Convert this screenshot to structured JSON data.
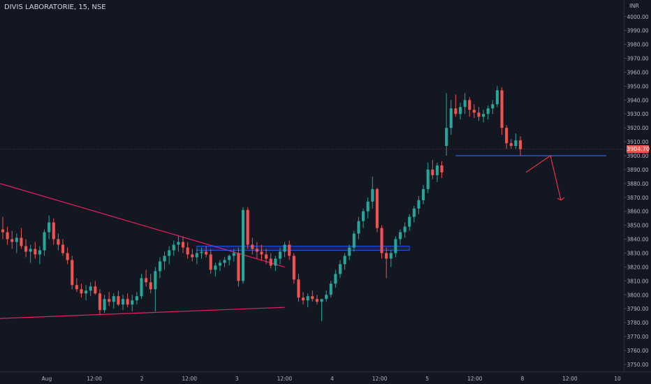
{
  "header": {
    "title": "DIVIS LABORATORIE, 15, NSE",
    "currency": "INR"
  },
  "last_price": {
    "label": "3904.70",
    "value": 3904.7
  },
  "colors": {
    "background": "#131722",
    "up": "#26a69a",
    "down": "#ef5350",
    "trendline": "#e91e63",
    "zone": "#2962ff",
    "arrow": "#f23645"
  },
  "chart_data": {
    "type": "candlestick",
    "title": "DIVIS LABORATORIE, 15, NSE",
    "y_unit": "INR",
    "ylim": [
      3745,
      4005
    ],
    "y_ticks": [
      "3750.00",
      "3760.00",
      "3770.00",
      "3780.00",
      "3790.00",
      "3800.00",
      "3810.00",
      "3820.00",
      "3830.00",
      "3840.00",
      "3850.00",
      "3860.00",
      "3870.00",
      "3880.00",
      "3890.00",
      "3900.00",
      "3910.00",
      "3920.00",
      "3930.00",
      "3940.00",
      "3950.00",
      "3960.00",
      "3970.00",
      "3980.00",
      "3990.00",
      "4000.00"
    ],
    "x_ticks": [
      "Aug",
      "12:00",
      "2",
      "12:00",
      "3",
      "12:00",
      "4",
      "12:00",
      "5",
      "12:00",
      "8",
      "12:00",
      "10"
    ],
    "candles": [
      [
        3847,
        3856,
        3840,
        3845
      ],
      [
        3845,
        3849,
        3836,
        3840
      ],
      [
        3840,
        3846,
        3833,
        3838
      ],
      [
        3838,
        3844,
        3830,
        3841
      ],
      [
        3841,
        3848,
        3833,
        3835
      ],
      [
        3835,
        3840,
        3827,
        3831
      ],
      [
        3831,
        3836,
        3823,
        3833
      ],
      [
        3833,
        3838,
        3826,
        3829
      ],
      [
        3829,
        3835,
        3822,
        3832
      ],
      [
        3832,
        3847,
        3828,
        3845
      ],
      [
        3845,
        3857,
        3840,
        3852
      ],
      [
        3852,
        3855,
        3836,
        3840
      ],
      [
        3840,
        3844,
        3832,
        3836
      ],
      [
        3836,
        3840,
        3828,
        3830
      ],
      [
        3830,
        3834,
        3822,
        3825
      ],
      [
        3825,
        3828,
        3804,
        3807
      ],
      [
        3807,
        3812,
        3802,
        3804
      ],
      [
        3804,
        3808,
        3798,
        3801
      ],
      [
        3801,
        3807,
        3796,
        3803
      ],
      [
        3803,
        3809,
        3799,
        3806
      ],
      [
        3806,
        3810,
        3800,
        3801
      ],
      [
        3801,
        3804,
        3786,
        3789
      ],
      [
        3789,
        3800,
        3787,
        3797
      ],
      [
        3797,
        3802,
        3792,
        3795
      ],
      [
        3795,
        3801,
        3790,
        3799
      ],
      [
        3799,
        3803,
        3792,
        3793
      ],
      [
        3793,
        3800,
        3789,
        3797
      ],
      [
        3797,
        3801,
        3791,
        3793
      ],
      [
        3793,
        3800,
        3788,
        3796
      ],
      [
        3796,
        3802,
        3793,
        3799
      ],
      [
        3799,
        3815,
        3797,
        3812
      ],
      [
        3812,
        3818,
        3806,
        3809
      ],
      [
        3809,
        3815,
        3801,
        3804
      ],
      [
        3804,
        3820,
        3788,
        3817
      ],
      [
        3817,
        3827,
        3812,
        3824
      ],
      [
        3824,
        3831,
        3818,
        3828
      ],
      [
        3828,
        3835,
        3822,
        3832
      ],
      [
        3832,
        3839,
        3828,
        3836
      ],
      [
        3836,
        3842,
        3831,
        3838
      ],
      [
        3838,
        3842,
        3830,
        3834
      ],
      [
        3834,
        3838,
        3826,
        3829
      ],
      [
        3829,
        3833,
        3824,
        3827
      ],
      [
        3827,
        3833,
        3822,
        3830
      ],
      [
        3830,
        3834,
        3826,
        3831
      ],
      [
        3831,
        3835,
        3827,
        3829
      ],
      [
        3829,
        3833,
        3815,
        3818
      ],
      [
        3818,
        3823,
        3813,
        3821
      ],
      [
        3821,
        3825,
        3817,
        3823
      ],
      [
        3823,
        3827,
        3820,
        3825
      ],
      [
        3825,
        3829,
        3821,
        3828
      ],
      [
        3828,
        3833,
        3824,
        3830
      ],
      [
        3830,
        3834,
        3806,
        3810
      ],
      [
        3810,
        3863,
        3808,
        3861
      ],
      [
        3861,
        3863,
        3833,
        3836
      ],
      [
        3836,
        3841,
        3829,
        3833
      ],
      [
        3833,
        3838,
        3826,
        3831
      ],
      [
        3831,
        3836,
        3825,
        3829
      ],
      [
        3829,
        3833,
        3822,
        3826
      ],
      [
        3826,
        3830,
        3819,
        3821
      ],
      [
        3821,
        3828,
        3817,
        3826
      ],
      [
        3826,
        3834,
        3822,
        3831
      ],
      [
        3831,
        3838,
        3827,
        3836
      ],
      [
        3836,
        3839,
        3825,
        3828
      ],
      [
        3828,
        3830,
        3808,
        3811
      ],
      [
        3811,
        3815,
        3795,
        3798
      ],
      [
        3798,
        3802,
        3793,
        3796
      ],
      [
        3796,
        3801,
        3791,
        3799
      ],
      [
        3799,
        3803,
        3795,
        3797
      ],
      [
        3797,
        3800,
        3793,
        3795
      ],
      [
        3795,
        3797,
        3781,
        3797
      ],
      [
        3797,
        3803,
        3795,
        3800
      ],
      [
        3800,
        3810,
        3798,
        3808
      ],
      [
        3808,
        3818,
        3805,
        3815
      ],
      [
        3815,
        3825,
        3812,
        3822
      ],
      [
        3822,
        3830,
        3818,
        3828
      ],
      [
        3828,
        3836,
        3825,
        3834
      ],
      [
        3834,
        3846,
        3831,
        3844
      ],
      [
        3844,
        3856,
        3840,
        3853
      ],
      [
        3853,
        3862,
        3848,
        3860
      ],
      [
        3860,
        3870,
        3855,
        3867
      ],
      [
        3867,
        3885,
        3862,
        3876
      ],
      [
        3876,
        3877,
        3845,
        3848
      ],
      [
        3848,
        3850,
        3826,
        3830
      ],
      [
        3830,
        3834,
        3812,
        3826
      ],
      [
        3826,
        3832,
        3820,
        3830
      ],
      [
        3830,
        3842,
        3827,
        3840
      ],
      [
        3840,
        3847,
        3836,
        3845
      ],
      [
        3845,
        3852,
        3841,
        3849
      ],
      [
        3849,
        3858,
        3846,
        3856
      ],
      [
        3856,
        3864,
        3852,
        3862
      ],
      [
        3862,
        3871,
        3858,
        3868
      ],
      [
        3868,
        3879,
        3865,
        3876
      ],
      [
        3876,
        3895,
        3873,
        3890
      ],
      [
        3890,
        3897,
        3883,
        3886
      ],
      [
        3886,
        3895,
        3881,
        3893
      ],
      [
        3893,
        3896,
        3884,
        3888
      ],
      [
        3907,
        3945,
        3900,
        3920
      ],
      [
        3920,
        3940,
        3915,
        3934
      ],
      [
        3934,
        3944,
        3928,
        3930
      ],
      [
        3930,
        3938,
        3926,
        3935
      ],
      [
        3935,
        3945,
        3930,
        3940
      ],
      [
        3940,
        3942,
        3928,
        3933
      ],
      [
        3933,
        3937,
        3927,
        3931
      ],
      [
        3931,
        3935,
        3925,
        3928
      ],
      [
        3928,
        3933,
        3924,
        3930
      ],
      [
        3930,
        3936,
        3926,
        3934
      ],
      [
        3934,
        3940,
        3930,
        3937
      ],
      [
        3937,
        3950,
        3935,
        3947
      ],
      [
        3947,
        3949,
        3915,
        3920
      ],
      [
        3920,
        3922,
        3905,
        3909
      ],
      [
        3909,
        3912,
        3905,
        3907
      ],
      [
        3907,
        3916,
        3905,
        3911
      ],
      [
        3911,
        3914,
        3900,
        3904.7
      ]
    ],
    "annotations": {
      "descending_trendline": {
        "from": [
          "3880",
          "start"
        ],
        "to": [
          "3820",
          "near 12:00 on 3"
        ]
      },
      "ascending_trendline": {
        "from": [
          "3783",
          "start"
        ],
        "to": [
          "3791",
          "near 12:00 on 3"
        ]
      },
      "support_zone": [
        3832,
        3835
      ],
      "horizontal_level": 3900,
      "projection": [
        3888,
        3900,
        3868
      ]
    }
  }
}
